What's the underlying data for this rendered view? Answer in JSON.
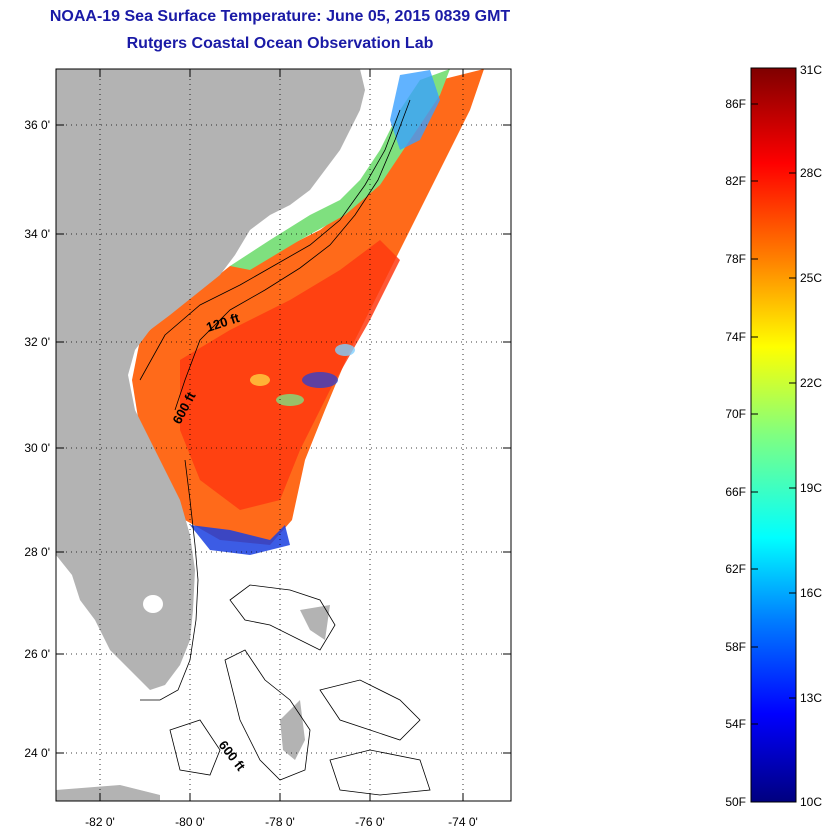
{
  "title": "NOAA-19 Sea Surface Temperature:  June 05, 2015 0839 GMT",
  "subtitle": "Rutgers Coastal Ocean Observation Lab",
  "map": {
    "latitude_labels": [
      "36 0'",
      "34 0'",
      "32 0'",
      "30 0'",
      "28 0'",
      "26 0'",
      "24 0'"
    ],
    "longitude_labels": [
      "-82 0'",
      "-80 0'",
      "-78 0'",
      "-76 0'",
      "-74 0'"
    ],
    "contour_labels": [
      "120 ft",
      "600 ft",
      "600 ft"
    ],
    "colors": {
      "land": "#b3b3b3",
      "ocean_warm": "#ff6a1a",
      "ocean_hot": "#ff3a10",
      "shelf_cool": "#7fe07f",
      "cold_patch": "#1a40e0"
    }
  },
  "colorbar": {
    "fahrenheit_labels": [
      "86F",
      "82F",
      "78F",
      "74F",
      "70F",
      "66F",
      "62F",
      "58F",
      "54F",
      "50F"
    ],
    "celsius_labels": [
      "31C",
      "28C",
      "25C",
      "22C",
      "19C",
      "16C",
      "13C",
      "10C"
    ],
    "range_f": [
      50,
      88
    ],
    "range_c": [
      10,
      31
    ]
  }
}
